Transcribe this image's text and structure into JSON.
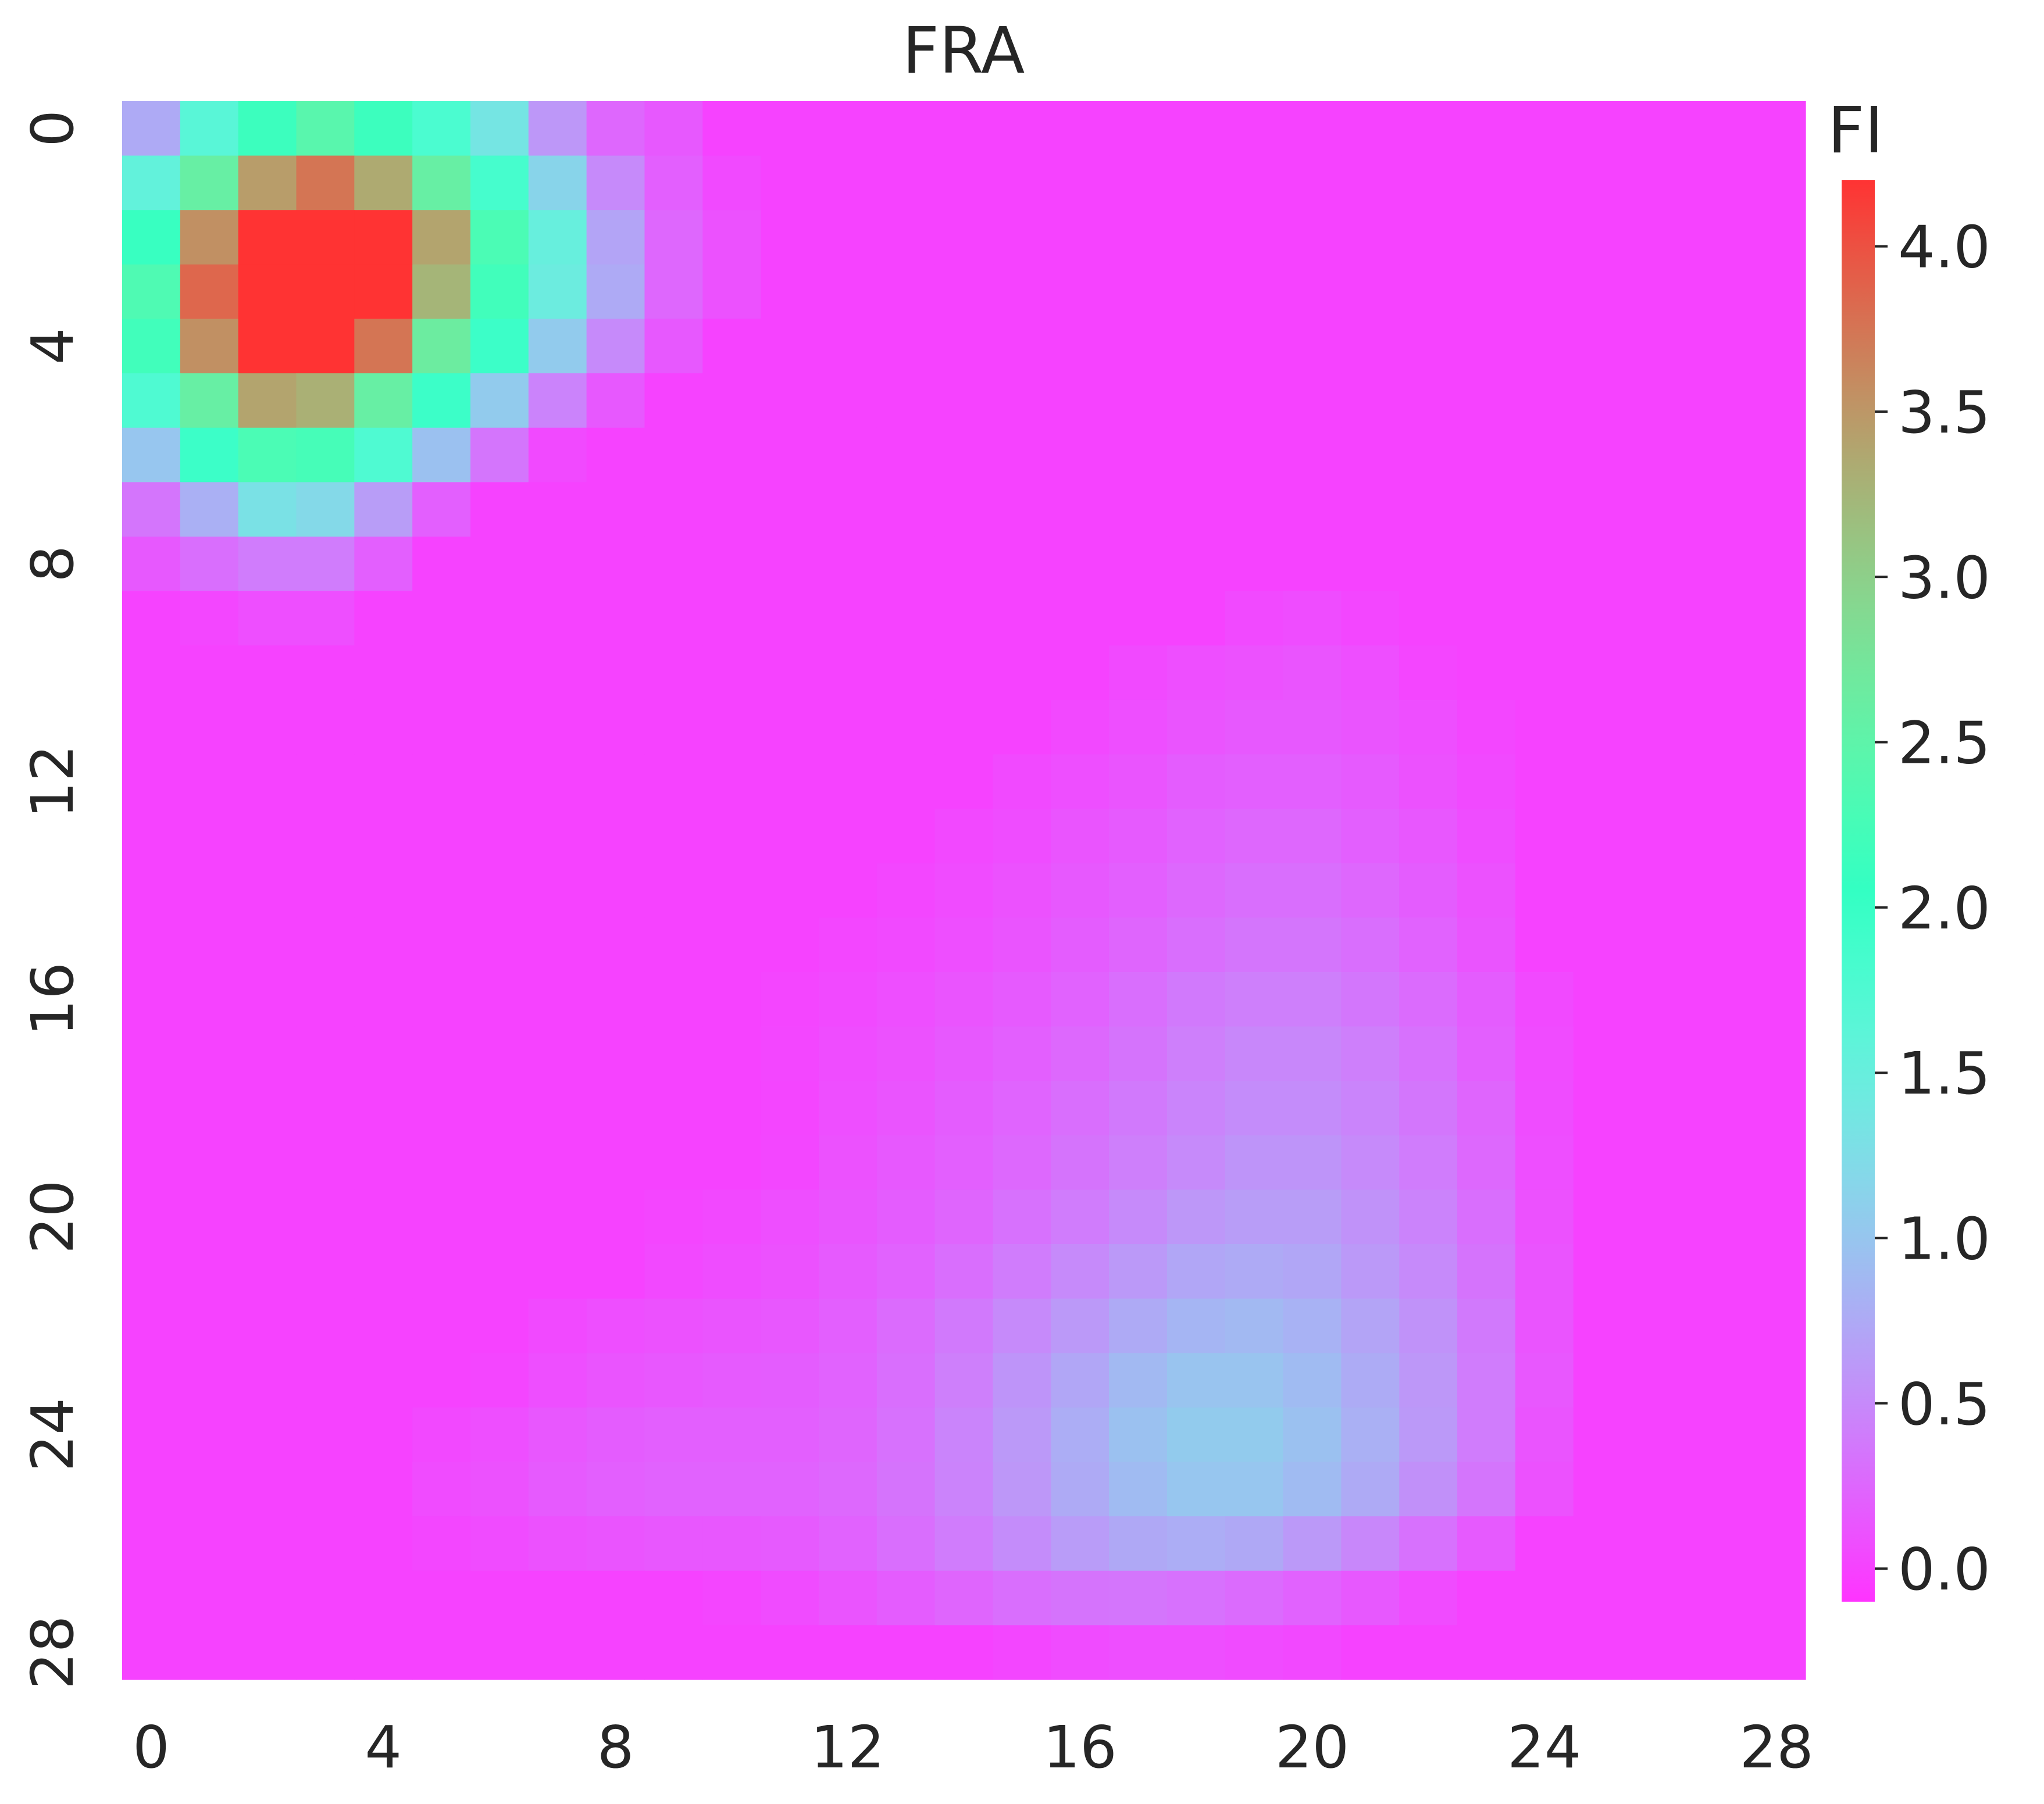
{
  "chart_data": {
    "type": "heatmap",
    "title": "FRA",
    "xlabel": "",
    "ylabel": "",
    "n_cols": 29,
    "n_rows": 29,
    "x_tick_labels": [
      "0",
      "4",
      "8",
      "12",
      "16",
      "20",
      "24",
      "28"
    ],
    "y_tick_labels": [
      "0",
      "4",
      "8",
      "12",
      "16",
      "20",
      "24",
      "28"
    ],
    "colorbar": {
      "label": "FI",
      "colormap": "rainbow",
      "vmin": -0.1,
      "vmax": 4.2,
      "tick_values": [
        0.0,
        0.5,
        1.0,
        1.5,
        2.0,
        2.5,
        3.0,
        3.5,
        4.0
      ],
      "tick_labels": [
        "0.0",
        "0.5",
        "1.0",
        "1.5",
        "2.0",
        "2.5",
        "3.0",
        "3.5",
        "4.0"
      ]
    },
    "values": [
      [
        0.75,
        1.65,
        2.15,
        2.45,
        2.15,
        1.8,
        1.35,
        0.6,
        0.25,
        0.15,
        0,
        0,
        0,
        0,
        0,
        0,
        0,
        0,
        0,
        0,
        0,
        0,
        0,
        0,
        0,
        0,
        0,
        0,
        0
      ],
      [
        1.55,
        2.6,
        3.45,
        3.75,
        3.35,
        2.6,
        1.85,
        1.15,
        0.5,
        0.2,
        0.05,
        0,
        0,
        0,
        0,
        0,
        0,
        0,
        0,
        0,
        0,
        0,
        0,
        0,
        0,
        0,
        0,
        0,
        0
      ],
      [
        2.1,
        3.55,
        4.2,
        4.2,
        4.2,
        3.4,
        2.3,
        1.5,
        0.7,
        0.25,
        0.1,
        0,
        0,
        0,
        0,
        0,
        0,
        0,
        0,
        0,
        0,
        0,
        0,
        0,
        0,
        0,
        0,
        0,
        0
      ],
      [
        2.35,
        3.85,
        4.2,
        4.2,
        4.2,
        3.25,
        2.2,
        1.45,
        0.75,
        0.25,
        0.1,
        0,
        0,
        0,
        0,
        0,
        0,
        0,
        0,
        0,
        0,
        0,
        0,
        0,
        0,
        0,
        0,
        0,
        0
      ],
      [
        2.2,
        3.55,
        4.2,
        4.2,
        3.75,
        2.65,
        1.95,
        1.05,
        0.5,
        0.15,
        0,
        0,
        0,
        0,
        0,
        0,
        0,
        0,
        0,
        0,
        0,
        0,
        0,
        0,
        0,
        0,
        0,
        0,
        0
      ],
      [
        1.75,
        2.6,
        3.4,
        3.3,
        2.6,
        1.95,
        1.05,
        0.45,
        0.15,
        0,
        0,
        0,
        0,
        0,
        0,
        0,
        0,
        0,
        0,
        0,
        0,
        0,
        0,
        0,
        0,
        0,
        0,
        0,
        0
      ],
      [
        1.0,
        1.95,
        2.3,
        2.25,
        1.75,
        0.95,
        0.35,
        0.05,
        0,
        0,
        0,
        0,
        0,
        0,
        0,
        0,
        0,
        0,
        0,
        0,
        0,
        0,
        0,
        0,
        0,
        0,
        0,
        0,
        0
      ],
      [
        0.35,
        0.8,
        1.3,
        1.2,
        0.65,
        0.2,
        0,
        0,
        0,
        0,
        0,
        0,
        0,
        0,
        0,
        0,
        0,
        0,
        0,
        0,
        0,
        0,
        0,
        0,
        0,
        0,
        0,
        0,
        0
      ],
      [
        0.15,
        0.3,
        0.4,
        0.4,
        0.2,
        0,
        0,
        0,
        0,
        0,
        0,
        0,
        0,
        0,
        0,
        0,
        0,
        0,
        0,
        0,
        0,
        0,
        0,
        0,
        0,
        0,
        0,
        0,
        0
      ],
      [
        0,
        0.03,
        0.08,
        0.08,
        0,
        0,
        0,
        0,
        0,
        0,
        0,
        0,
        0,
        0,
        0,
        0,
        0,
        0,
        0,
        0.05,
        0.07,
        0.03,
        0,
        0,
        0,
        0,
        0,
        0,
        0
      ],
      [
        0,
        0,
        0,
        0,
        0,
        0,
        0,
        0,
        0,
        0,
        0,
        0,
        0,
        0,
        0,
        0,
        0,
        0.05,
        0.08,
        0.1,
        0.12,
        0.08,
        0.02,
        0,
        0,
        0,
        0,
        0,
        0
      ],
      [
        0,
        0,
        0,
        0,
        0,
        0,
        0,
        0,
        0,
        0,
        0,
        0,
        0,
        0,
        0,
        0,
        0.04,
        0.08,
        0.12,
        0.15,
        0.15,
        0.12,
        0.08,
        0.03,
        0,
        0,
        0,
        0,
        0
      ],
      [
        0,
        0,
        0,
        0,
        0,
        0,
        0,
        0,
        0,
        0,
        0,
        0,
        0,
        0,
        0,
        0.05,
        0.08,
        0.12,
        0.18,
        0.2,
        0.2,
        0.16,
        0.1,
        0.05,
        0,
        0,
        0,
        0,
        0
      ],
      [
        0,
        0,
        0,
        0,
        0,
        0,
        0,
        0,
        0,
        0,
        0,
        0,
        0,
        0,
        0.04,
        0.07,
        0.12,
        0.16,
        0.22,
        0.25,
        0.25,
        0.2,
        0.14,
        0.07,
        0,
        0,
        0,
        0,
        0
      ],
      [
        0,
        0,
        0,
        0,
        0,
        0,
        0,
        0,
        0,
        0,
        0,
        0,
        0,
        0.03,
        0.06,
        0.1,
        0.15,
        0.2,
        0.26,
        0.3,
        0.3,
        0.25,
        0.18,
        0.1,
        0,
        0,
        0,
        0,
        0
      ],
      [
        0,
        0,
        0,
        0,
        0,
        0,
        0,
        0,
        0,
        0,
        0,
        0,
        0.03,
        0.05,
        0.08,
        0.12,
        0.18,
        0.24,
        0.3,
        0.35,
        0.35,
        0.3,
        0.22,
        0.12,
        0,
        0,
        0,
        0,
        0
      ],
      [
        0,
        0,
        0,
        0,
        0,
        0,
        0,
        0,
        0,
        0,
        0,
        0.02,
        0.05,
        0.08,
        0.12,
        0.16,
        0.22,
        0.3,
        0.38,
        0.42,
        0.42,
        0.36,
        0.28,
        0.18,
        0.05,
        0,
        0,
        0,
        0
      ],
      [
        0,
        0,
        0,
        0,
        0,
        0,
        0,
        0,
        0,
        0,
        0,
        0.03,
        0.07,
        0.1,
        0.15,
        0.2,
        0.26,
        0.34,
        0.42,
        0.48,
        0.48,
        0.42,
        0.32,
        0.2,
        0.06,
        0,
        0,
        0,
        0
      ],
      [
        0,
        0,
        0,
        0,
        0,
        0,
        0,
        0,
        0,
        0,
        0,
        0.02,
        0.08,
        0.12,
        0.18,
        0.23,
        0.3,
        0.38,
        0.46,
        0.52,
        0.52,
        0.46,
        0.36,
        0.24,
        0.07,
        0,
        0,
        0,
        0
      ],
      [
        0,
        0,
        0,
        0,
        0,
        0,
        0,
        0,
        0,
        0,
        0,
        0.03,
        0.1,
        0.15,
        0.2,
        0.26,
        0.34,
        0.42,
        0.5,
        0.58,
        0.58,
        0.5,
        0.4,
        0.26,
        0.08,
        0,
        0,
        0,
        0
      ],
      [
        0,
        0,
        0,
        0,
        0,
        0,
        0,
        0,
        0,
        0.02,
        0.04,
        0.08,
        0.13,
        0.18,
        0.24,
        0.32,
        0.4,
        0.5,
        0.6,
        0.65,
        0.65,
        0.56,
        0.45,
        0.3,
        0.1,
        0,
        0,
        0,
        0
      ],
      [
        0,
        0,
        0,
        0,
        0,
        0,
        0,
        0,
        0,
        0.04,
        0.07,
        0.1,
        0.16,
        0.22,
        0.3,
        0.4,
        0.5,
        0.62,
        0.72,
        0.75,
        0.72,
        0.62,
        0.5,
        0.34,
        0.12,
        0,
        0,
        0,
        0
      ],
      [
        0,
        0,
        0,
        0,
        0,
        0,
        0,
        0.05,
        0.08,
        0.1,
        0.12,
        0.14,
        0.2,
        0.28,
        0.38,
        0.5,
        0.62,
        0.75,
        0.85,
        0.88,
        0.82,
        0.7,
        0.56,
        0.38,
        0.12,
        0,
        0,
        0,
        0
      ],
      [
        0,
        0,
        0,
        0,
        0,
        0,
        0.02,
        0.08,
        0.12,
        0.14,
        0.16,
        0.18,
        0.22,
        0.3,
        0.42,
        0.58,
        0.72,
        0.88,
        0.98,
        0.98,
        0.9,
        0.76,
        0.6,
        0.4,
        0.14,
        0,
        0,
        0,
        0
      ],
      [
        0,
        0,
        0,
        0,
        0,
        0.04,
        0.08,
        0.14,
        0.18,
        0.2,
        0.2,
        0.2,
        0.24,
        0.32,
        0.46,
        0.62,
        0.78,
        0.95,
        1.05,
        1.05,
        0.95,
        0.8,
        0.62,
        0.4,
        0.12,
        0,
        0,
        0,
        0
      ],
      [
        0,
        0,
        0,
        0,
        0,
        0.06,
        0.1,
        0.16,
        0.2,
        0.22,
        0.22,
        0.22,
        0.26,
        0.34,
        0.45,
        0.6,
        0.75,
        0.9,
        1.0,
        1.0,
        0.9,
        0.75,
        0.55,
        0.35,
        0.1,
        0,
        0,
        0,
        0
      ],
      [
        0,
        0,
        0,
        0,
        0,
        0.03,
        0.06,
        0.1,
        0.12,
        0.14,
        0.14,
        0.16,
        0.22,
        0.3,
        0.4,
        0.52,
        0.64,
        0.74,
        0.78,
        0.74,
        0.62,
        0.48,
        0.32,
        0.16,
        0,
        0,
        0,
        0,
        0
      ],
      [
        0,
        0,
        0,
        0,
        0,
        0,
        0,
        0,
        0,
        0,
        0.02,
        0.06,
        0.12,
        0.18,
        0.24,
        0.3,
        0.34,
        0.35,
        0.32,
        0.28,
        0.22,
        0.15,
        0.06,
        0,
        0,
        0,
        0,
        0,
        0
      ],
      [
        0,
        0,
        0,
        0,
        0,
        0,
        0,
        0,
        0,
        0,
        0,
        0,
        0,
        0,
        0,
        0.03,
        0.06,
        0.08,
        0.08,
        0.06,
        0.04,
        0,
        0,
        0,
        0,
        0,
        0,
        0,
        0
      ]
    ]
  }
}
